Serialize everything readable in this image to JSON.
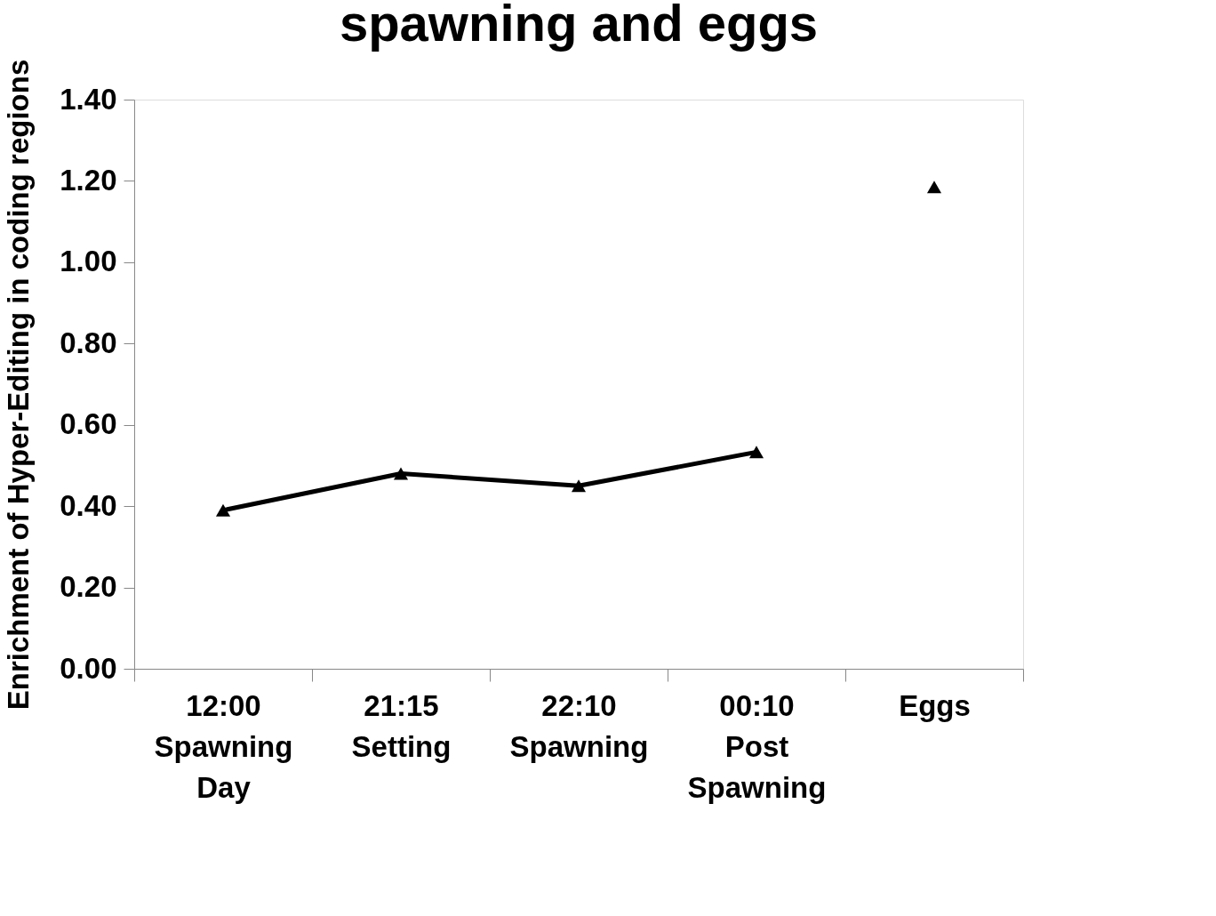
{
  "chart_data": {
    "type": "line",
    "title": "spawning and eggs",
    "ylabel": "Enrichment of Hyper-Editing in coding regions",
    "categories": [
      "12:00\nSpawning\nDay",
      "21:15\nSetting",
      "22:10\nSpawning",
      "00:10\nPost\nSpawning",
      "Eggs"
    ],
    "series": [
      {
        "color": "#000000",
        "values": [
          0.39,
          0.48,
          0.45,
          0.533,
          null
        ]
      },
      {
        "type": "scatter",
        "color": "#000000",
        "values": [
          null,
          null,
          null,
          null,
          1.185
        ]
      }
    ],
    "marker": "triangle",
    "line_style": "solid",
    "ylim": [
      0,
      1.4
    ],
    "yticks": [
      {
        "value": 0,
        "label": "0.00"
      },
      {
        "value": 0.2,
        "label": "0.20"
      },
      {
        "value": 0.4,
        "label": "0.40"
      },
      {
        "value": 0.6,
        "label": "0.60"
      },
      {
        "value": 0.8,
        "label": "0.80"
      },
      {
        "value": 1.0,
        "label": "1.00"
      },
      {
        "value": 1.2,
        "label": "1.20"
      },
      {
        "value": 1.4,
        "label": "1.40"
      }
    ],
    "grid": false
  }
}
